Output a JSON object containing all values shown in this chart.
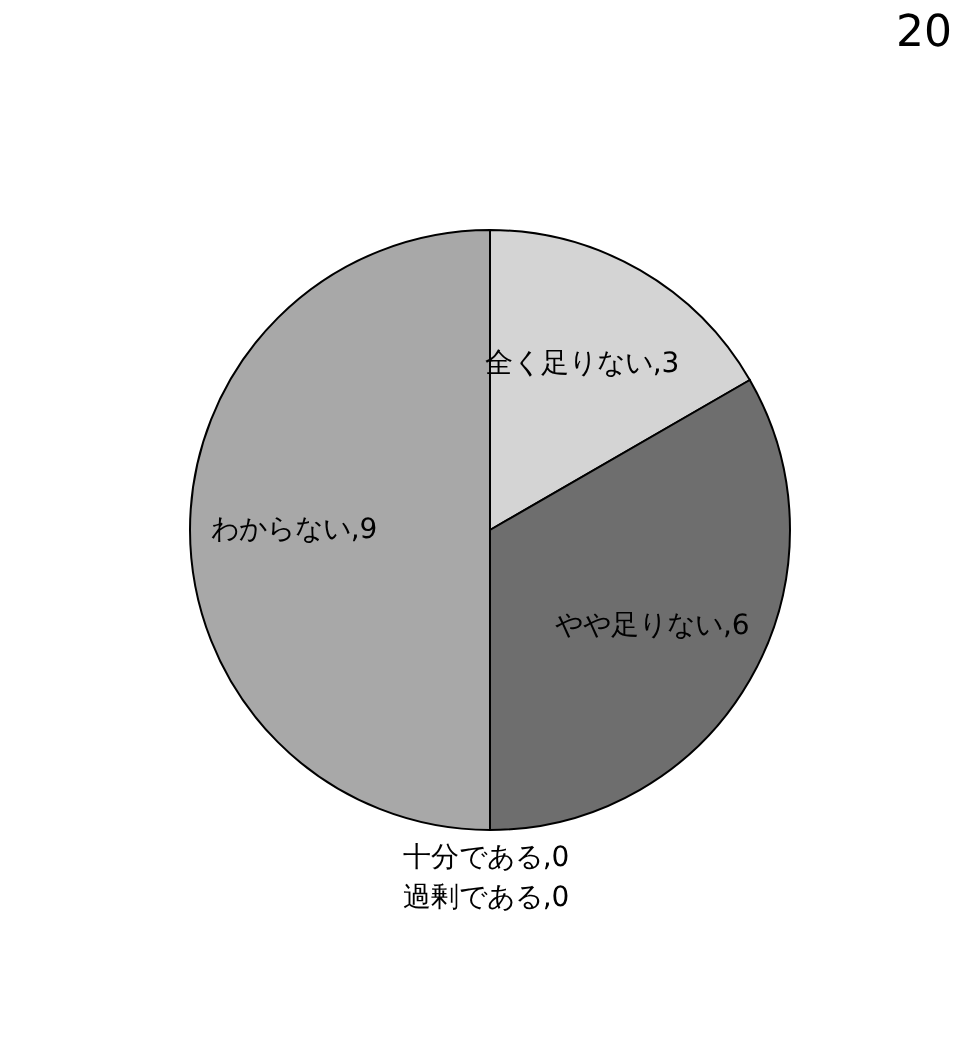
{
  "chart_data": {
    "type": "pie",
    "categories": [
      "全く足りない",
      "やや足りない",
      "十分である",
      "過剰である",
      "わからない"
    ],
    "values": [
      3,
      6,
      0,
      0,
      9
    ],
    "colors": [
      "#d4d4d4",
      "#6e6e6e",
      "#f0f0f0",
      "#e0e0e0",
      "#a8a8a8"
    ],
    "value_labels": [
      ",3",
      ",6",
      ",0",
      ",0",
      ",9"
    ],
    "annotations": [
      "20"
    ]
  }
}
